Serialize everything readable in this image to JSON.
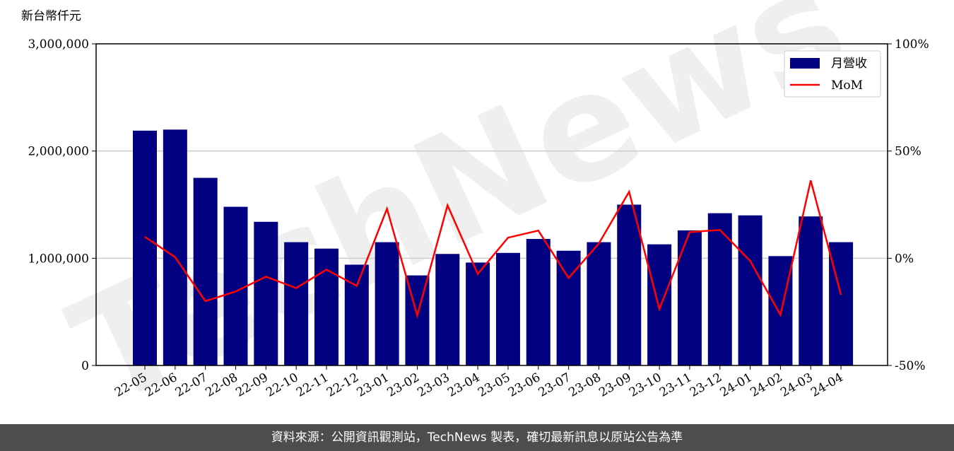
{
  "chart_data": {
    "type": "bar",
    "ylabel": "新台幣仟元",
    "watermark": "TechNews",
    "categories": [
      "22-05",
      "22-06",
      "22-07",
      "22-08",
      "22-09",
      "22-10",
      "22-11",
      "22-12",
      "23-01",
      "23-02",
      "23-03",
      "23-04",
      "23-05",
      "23-06",
      "23-07",
      "23-08",
      "23-09",
      "23-10",
      "23-11",
      "23-12",
      "24-01",
      "24-02",
      "24-03",
      "24-04"
    ],
    "series": [
      {
        "name": "月營收",
        "color": "#000080",
        "values": [
          2190000,
          2200000,
          1750000,
          1480000,
          1340000,
          1150000,
          1090000,
          940000,
          1150000,
          840000,
          1040000,
          960000,
          1050000,
          1180000,
          1070000,
          1150000,
          1500000,
          1130000,
          1260000,
          1420000,
          1400000,
          1020000,
          1390000,
          1150000
        ]
      },
      {
        "name": "MoM",
        "color": "#ff0000",
        "axis": "y2",
        "type": "line",
        "values": [
          10,
          0.5,
          -20,
          -15.5,
          -8.6,
          -13.9,
          -5.3,
          -12.9,
          23.1,
          -26.7,
          24.7,
          -7.3,
          9.6,
          12.9,
          -9.2,
          6.9,
          31,
          -23.7,
          12.2,
          13.2,
          -1.3,
          -26.4,
          36.3,
          -17.1
        ]
      }
    ],
    "ylim": [
      0,
      3000000
    ],
    "yticks": [
      0,
      {
        "value": 1000000,
        "label": "1,000,000"
      },
      {
        "value": 2000000,
        "label": "2,000,000"
      },
      {
        "value": 3000000,
        "label": "3,000,000"
      }
    ],
    "y2lim": [
      -50,
      100
    ],
    "y2ticks": [
      {
        "value": -50,
        "label": "-50%"
      },
      {
        "value": 0,
        "label": "0%"
      },
      {
        "value": 50,
        "label": "50%"
      },
      {
        "value": 100,
        "label": "100%"
      }
    ],
    "grid": true,
    "legend": "upper right"
  },
  "footer": "資料來源：公開資訊觀測站，TechNews 製表，確切最新訊息以原站公告為準"
}
